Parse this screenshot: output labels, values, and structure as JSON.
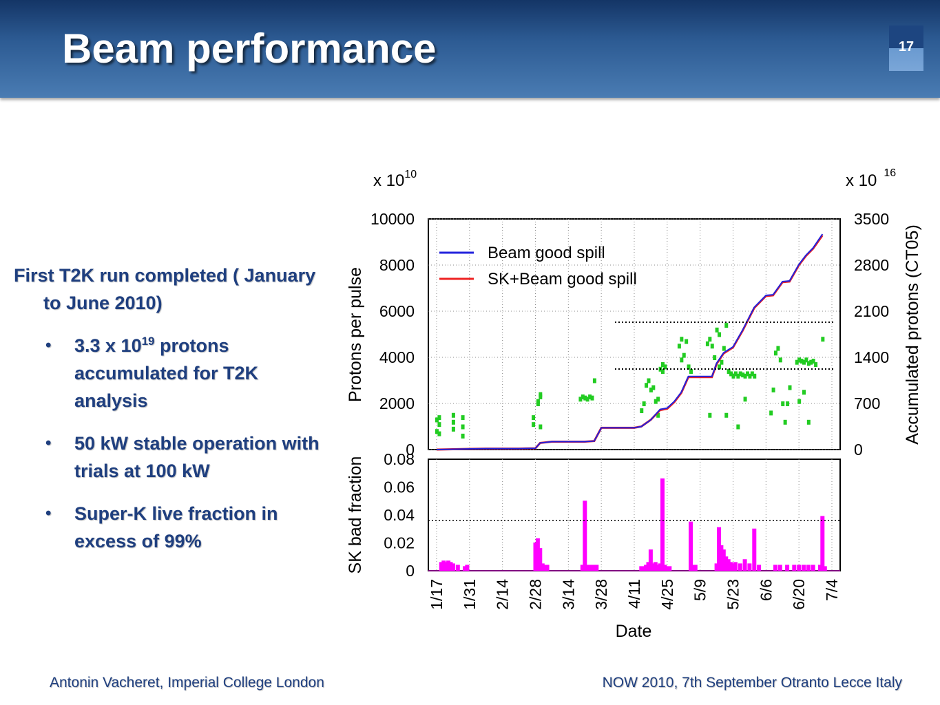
{
  "slide": {
    "title": "Beam performance",
    "slide_number": "17",
    "lead": "First T2K run completed ( January to June 2010)",
    "bullets": [
      {
        "before": "3.3 x 10",
        "sup": "19",
        "after": " protons accumulated for T2K analysis"
      },
      {
        "before": " 50 kW stable operation with trials at 100 kW",
        "sup": "",
        "after": ""
      },
      {
        "before": "Super-K live fraction in excess of 99%",
        "sup": "",
        "after": ""
      }
    ],
    "footer_left": "Antonin Vacheret, Imperial College London",
    "footer_right": "NOW 2010, 7th September Otranto Lecce Italy",
    "colors": {
      "header": "#2c5a92",
      "text": "#1f3f7f",
      "beam": "#2222dd",
      "sk_beam": "#ee2222",
      "ppp": "#22cc22",
      "bad": "#ff00ff"
    }
  },
  "chart_data": [
    {
      "type": "line+scatter",
      "ylabel": "Protons per pulse",
      "y2label": "Accumulated protons (CT05)",
      "y_multiplier": "x 10",
      "y_exp": "10",
      "y2_multiplier": "x 10",
      "y2_exp": "16",
      "ylim": [
        0,
        10000
      ],
      "y2lim": [
        0,
        3500
      ],
      "yticks": [
        "0",
        "2000",
        "4000",
        "6000",
        "8000",
        "10000"
      ],
      "y2ticks": [
        "0",
        "700",
        "1400",
        "2100",
        "2800",
        "3500"
      ],
      "legend": [
        "Beam good spill",
        "SK+Beam good spill"
      ],
      "legend_position": "top-left",
      "series": [
        {
          "name": "SK+Beam good spill",
          "axis": "right",
          "x": [
            "1/17",
            "1/24",
            "1/31",
            "2/7",
            "2/14",
            "2/21",
            "2/28",
            "3/2",
            "3/7",
            "3/14",
            "3/21",
            "3/25",
            "3/28",
            "4/4",
            "4/11",
            "4/14",
            "4/18",
            "4/22",
            "4/25",
            "4/28",
            "5/1",
            "5/4",
            "5/9",
            "5/14",
            "5/16",
            "5/19",
            "5/23",
            "5/27",
            "6/1",
            "6/6",
            "6/9",
            "6/13",
            "6/16",
            "6/20",
            "6/23",
            "6/26",
            "6/30"
          ],
          "values": [
            0,
            5,
            10,
            15,
            15,
            15,
            20,
            100,
            120,
            120,
            120,
            130,
            330,
            330,
            330,
            350,
            450,
            600,
            620,
            720,
            860,
            1100,
            1100,
            1100,
            1300,
            1460,
            1550,
            1800,
            2150,
            2330,
            2340,
            2540,
            2550,
            2800,
            2940,
            3050,
            3250
          ]
        },
        {
          "name": "Beam good spill",
          "axis": "right",
          "x": [
            "1/17",
            "1/24",
            "1/31",
            "2/7",
            "2/14",
            "2/21",
            "2/28",
            "3/2",
            "3/7",
            "3/14",
            "3/21",
            "3/25",
            "3/28",
            "4/4",
            "4/11",
            "4/14",
            "4/18",
            "4/22",
            "4/25",
            "4/28",
            "5/1",
            "5/4",
            "5/9",
            "5/14",
            "5/16",
            "5/19",
            "5/23",
            "5/27",
            "6/1",
            "6/6",
            "6/9",
            "6/13",
            "6/16",
            "6/20",
            "6/23",
            "6/26",
            "6/30"
          ],
          "values": [
            0,
            5,
            10,
            15,
            15,
            15,
            20,
            100,
            120,
            120,
            120,
            130,
            330,
            330,
            330,
            350,
            450,
            610,
            630,
            730,
            870,
            1110,
            1110,
            1110,
            1310,
            1470,
            1560,
            1810,
            2160,
            2340,
            2350,
            2550,
            2560,
            2810,
            2950,
            3060,
            3270
          ]
        }
      ],
      "ppp_points": [
        [
          "1/17",
          1300
        ],
        [
          "1/17",
          800
        ],
        [
          "1/18",
          1400
        ],
        [
          "1/18",
          1100
        ],
        [
          "1/18",
          700
        ],
        [
          "1/24",
          1500
        ],
        [
          "1/24",
          1200
        ],
        [
          "1/24",
          900
        ],
        [
          "1/28",
          1400
        ],
        [
          "1/28",
          1000
        ],
        [
          "1/28",
          600
        ],
        [
          "2/27",
          1400
        ],
        [
          "2/27",
          1100
        ],
        [
          "3/1",
          2000
        ],
        [
          "3/1",
          2100
        ],
        [
          "3/2",
          2300
        ],
        [
          "3/2",
          2400
        ],
        [
          "3/2",
          1000
        ],
        [
          "3/19",
          2200
        ],
        [
          "3/20",
          2300
        ],
        [
          "3/21",
          2250
        ],
        [
          "3/22",
          2200
        ],
        [
          "3/23",
          2300
        ],
        [
          "3/24",
          2250
        ],
        [
          "3/25",
          3000
        ],
        [
          "4/14",
          1700
        ],
        [
          "4/15",
          2000
        ],
        [
          "4/16",
          2800
        ],
        [
          "4/17",
          3000
        ],
        [
          "4/18",
          2600
        ],
        [
          "4/19",
          2700
        ],
        [
          "4/20",
          2100
        ],
        [
          "4/21",
          2200
        ],
        [
          "4/22",
          3500
        ],
        [
          "4/23",
          3700
        ],
        [
          "4/23",
          3400
        ],
        [
          "4/24",
          3600
        ],
        [
          "4/21",
          1500
        ],
        [
          "4/30",
          4500
        ],
        [
          "5/1",
          4800
        ],
        [
          "5/1",
          3900
        ],
        [
          "5/2",
          4100
        ],
        [
          "5/3",
          4700
        ],
        [
          "5/4",
          3600
        ],
        [
          "5/5",
          3400
        ],
        [
          "5/12",
          4600
        ],
        [
          "5/13",
          4800
        ],
        [
          "5/14",
          4500
        ],
        [
          "5/15",
          4000
        ],
        [
          "5/16",
          5200
        ],
        [
          "5/17",
          5000
        ],
        [
          "5/17",
          3600
        ],
        [
          "5/18",
          3800
        ],
        [
          "5/19",
          4400
        ],
        [
          "5/20",
          5400
        ],
        [
          "5/21",
          3400
        ],
        [
          "5/22",
          3300
        ],
        [
          "5/23",
          3200
        ],
        [
          "5/24",
          3300
        ],
        [
          "5/25",
          3200
        ],
        [
          "5/26",
          3300
        ],
        [
          "5/27",
          3250
        ],
        [
          "5/28",
          3200
        ],
        [
          "5/29",
          3300
        ],
        [
          "5/30",
          3200
        ],
        [
          "5/31",
          3300
        ],
        [
          "6/1",
          3200
        ],
        [
          "5/20",
          1500
        ],
        [
          "5/25",
          1000
        ],
        [
          "5/28",
          2200
        ],
        [
          "5/13",
          1500
        ],
        [
          "6/8",
          1600
        ],
        [
          "6/9",
          2600
        ],
        [
          "6/10",
          4200
        ],
        [
          "6/11",
          4400
        ],
        [
          "6/12",
          3900
        ],
        [
          "6/13",
          2000
        ],
        [
          "6/14",
          1200
        ],
        [
          "6/15",
          2000
        ],
        [
          "6/16",
          2700
        ],
        [
          "6/19",
          3800
        ],
        [
          "6/20",
          3900
        ],
        [
          "6/21",
          3850
        ],
        [
          "6/22",
          3800
        ],
        [
          "6/23",
          3900
        ],
        [
          "6/24",
          3750
        ],
        [
          "6/25",
          3800
        ],
        [
          "6/26",
          3850
        ],
        [
          "6/27",
          3700
        ],
        [
          "6/20",
          2100
        ],
        [
          "6/22",
          2500
        ],
        [
          "6/24",
          1200
        ],
        [
          "6/30",
          4800
        ]
      ]
    },
    {
      "type": "area",
      "ylabel": "SK bad fraction",
      "xlabel": "Date",
      "ylim": [
        0,
        0.08
      ],
      "yticks": [
        "0",
        "0.02",
        "0.04",
        "0.06",
        "0.08"
      ],
      "x_ticks": [
        "1/17",
        "1/31",
        "2/14",
        "2/28",
        "3/14",
        "3/28",
        "4/11",
        "4/25",
        "5/9",
        "5/23",
        "6/6",
        "6/20",
        "7/4"
      ],
      "series": [
        {
          "name": "SK bad fraction",
          "x": [
            "1/19",
            "1/20",
            "1/21",
            "1/22",
            "1/23",
            "1/24",
            "1/26",
            "1/29",
            "1/30",
            "2/28",
            "3/1",
            "3/2",
            "3/3",
            "3/4",
            "3/5",
            "3/20",
            "3/21",
            "3/22",
            "3/23",
            "3/24",
            "3/25",
            "3/26",
            "4/14",
            "4/15",
            "4/16",
            "4/17",
            "4/18",
            "4/19",
            "4/20",
            "4/21",
            "4/22",
            "4/23",
            "4/24",
            "4/25",
            "4/26",
            "5/5",
            "5/6",
            "5/7",
            "5/16",
            "5/17",
            "5/18",
            "5/19",
            "5/20",
            "5/21",
            "5/22",
            "5/23",
            "5/24",
            "5/26",
            "5/28",
            "5/30",
            "6/1",
            "6/3",
            "6/10",
            "6/12",
            "6/15",
            "6/18",
            "6/20",
            "6/22",
            "6/24",
            "6/26",
            "6/29",
            "6/30",
            "7/1"
          ],
          "values": [
            0.006,
            0.007,
            0.006,
            0.007,
            0.006,
            0.005,
            0.004,
            0.003,
            0.004,
            0.02,
            0.023,
            0.016,
            0.005,
            0.004,
            0.004,
            0.004,
            0.05,
            0.004,
            0.004,
            0.004,
            0.004,
            0.004,
            0.003,
            0.003,
            0.004,
            0.006,
            0.015,
            0.005,
            0.006,
            0.004,
            0.005,
            0.066,
            0.004,
            0.003,
            0.003,
            0.035,
            0.004,
            0.004,
            0.005,
            0.031,
            0.018,
            0.015,
            0.01,
            0.008,
            0.006,
            0.005,
            0.006,
            0.005,
            0.008,
            0.005,
            0.03,
            0.004,
            0.004,
            0.004,
            0.004,
            0.004,
            0.004,
            0.004,
            0.004,
            0.004,
            0.004,
            0.039,
            0.003
          ]
        }
      ]
    }
  ]
}
